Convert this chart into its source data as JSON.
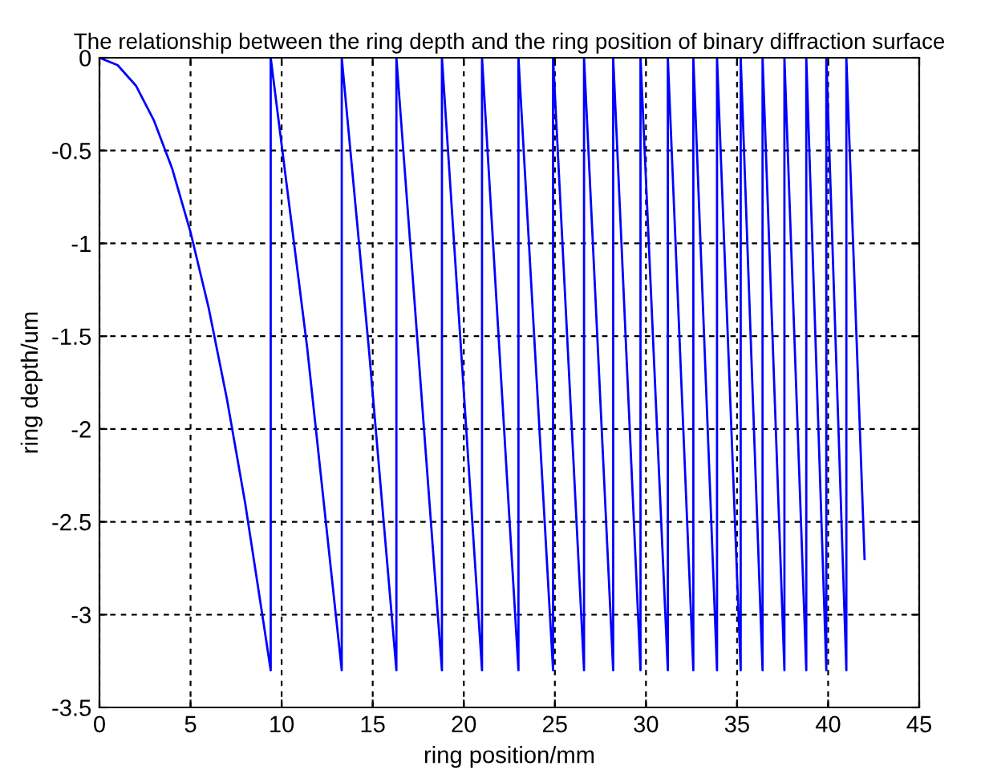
{
  "chart_data": {
    "type": "line",
    "title": "The relationship between the ring depth and the ring position of binary diffraction surface",
    "xlabel": "ring position/mm",
    "ylabel": "ring depth/um",
    "series": [
      {
        "color": "#0000ff",
        "x": [
          0,
          1,
          2,
          3,
          4,
          5,
          6,
          7,
          8,
          9,
          9.4,
          9.4,
          11.4,
          13.3,
          13.3,
          14.8,
          16.3,
          16.3,
          18.8,
          18.8,
          21.0,
          21.0,
          23.0,
          23.0,
          24.9,
          24.9,
          26.6,
          26.6,
          28.2,
          28.2,
          29.7,
          29.7,
          31.2,
          31.2,
          32.6,
          32.6,
          33.9,
          33.9,
          35.2,
          35.2,
          36.4,
          36.4,
          37.6,
          37.6,
          38.8,
          38.8,
          39.9,
          39.9,
          41.0,
          41.0,
          42.0
        ],
        "values": [
          0,
          -0.04,
          -0.15,
          -0.34,
          -0.6,
          -0.94,
          -1.35,
          -1.84,
          -2.4,
          -3.04,
          -3.3,
          0,
          -1.56,
          -3.3,
          0,
          -1.58,
          -3.3,
          0,
          -3.3,
          0,
          -3.3,
          0,
          -3.3,
          0,
          -3.3,
          0,
          -3.3,
          0,
          -3.3,
          0,
          -3.3,
          0,
          -3.3,
          0,
          -3.3,
          0,
          -3.3,
          0,
          -3.3,
          0,
          -3.3,
          0,
          -3.3,
          0,
          -3.3,
          0,
          -3.3,
          0,
          -3.3,
          0,
          -2.7
        ]
      }
    ],
    "xlim": [
      0,
      45
    ],
    "xticks": [
      0,
      5,
      10,
      15,
      20,
      25,
      30,
      35,
      40,
      45
    ],
    "ylim": [
      -3.5,
      0
    ],
    "yticks": [
      -3.5,
      -3,
      -2.5,
      -2,
      -1.5,
      -1,
      -0.5,
      0
    ],
    "grid": true,
    "line_style": "solid",
    "marker": "none",
    "legend": false
  }
}
